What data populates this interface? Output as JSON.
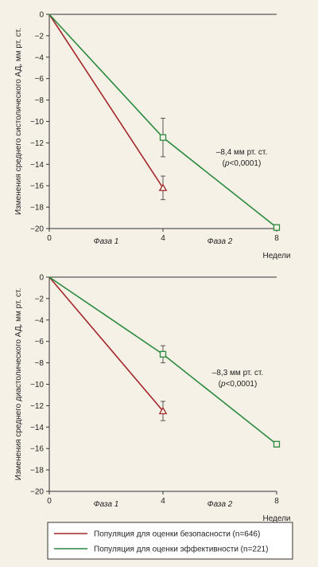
{
  "colors": {
    "safety": "#a3272b",
    "efficacy": "#2a8a3e",
    "background": "#f6f1e6",
    "axis": "#333333"
  },
  "legend": {
    "safety_label": "Популяция для оценки безопасности (n=646)",
    "efficacy_label": "Популяция для оценки эффективности (n=221)"
  },
  "chart_data": [
    {
      "type": "line",
      "ylabel": "Изменения среднего систолического АД, мм рт. ст.",
      "xlabel": "Недели",
      "xlim": [
        0,
        8
      ],
      "ylim": [
        -20,
        0
      ],
      "xticks": [
        0,
        4,
        8
      ],
      "yticks": [
        0,
        -2,
        -4,
        -6,
        -8,
        -10,
        -12,
        -14,
        -16,
        -18,
        -20
      ],
      "phases": [
        "Фаза 1",
        "Фаза 2"
      ],
      "annotation": {
        "line1": "–8,4 мм рт. ст.",
        "p_symbol": "p",
        "line2_rest": "<0,0001)"
      },
      "series": [
        {
          "key": "safety",
          "marker": "triangle",
          "x": [
            0,
            4
          ],
          "y": [
            0,
            -16.2
          ],
          "err": [
            null,
            1.1
          ]
        },
        {
          "key": "efficacy",
          "marker": "square",
          "x": [
            0,
            4,
            8
          ],
          "y": [
            0,
            -11.5,
            -19.9
          ],
          "err": [
            null,
            1.8,
            null
          ]
        }
      ]
    },
    {
      "type": "line",
      "ylabel": "Изменения среднего диастолического АД, мм рт. ст.",
      "xlabel": "Недели",
      "xlim": [
        0,
        8
      ],
      "ylim": [
        -20,
        0
      ],
      "xticks": [
        0,
        4,
        8
      ],
      "yticks": [
        0,
        -2,
        -4,
        -6,
        -8,
        -10,
        -12,
        -14,
        -16,
        -18,
        -20
      ],
      "phases": [
        "Фаза 1",
        "Фаза 2"
      ],
      "annotation": {
        "line1": "–8,3 мм рт. ст.",
        "p_symbol": "p",
        "line2_rest": "<0,0001)"
      },
      "series": [
        {
          "key": "safety",
          "marker": "triangle",
          "x": [
            0,
            4
          ],
          "y": [
            0,
            -12.5
          ],
          "err": [
            null,
            0.9
          ]
        },
        {
          "key": "efficacy",
          "marker": "square",
          "x": [
            0,
            4,
            8
          ],
          "y": [
            0,
            -7.2,
            -15.6
          ],
          "err": [
            null,
            0.8,
            null
          ]
        }
      ]
    }
  ]
}
